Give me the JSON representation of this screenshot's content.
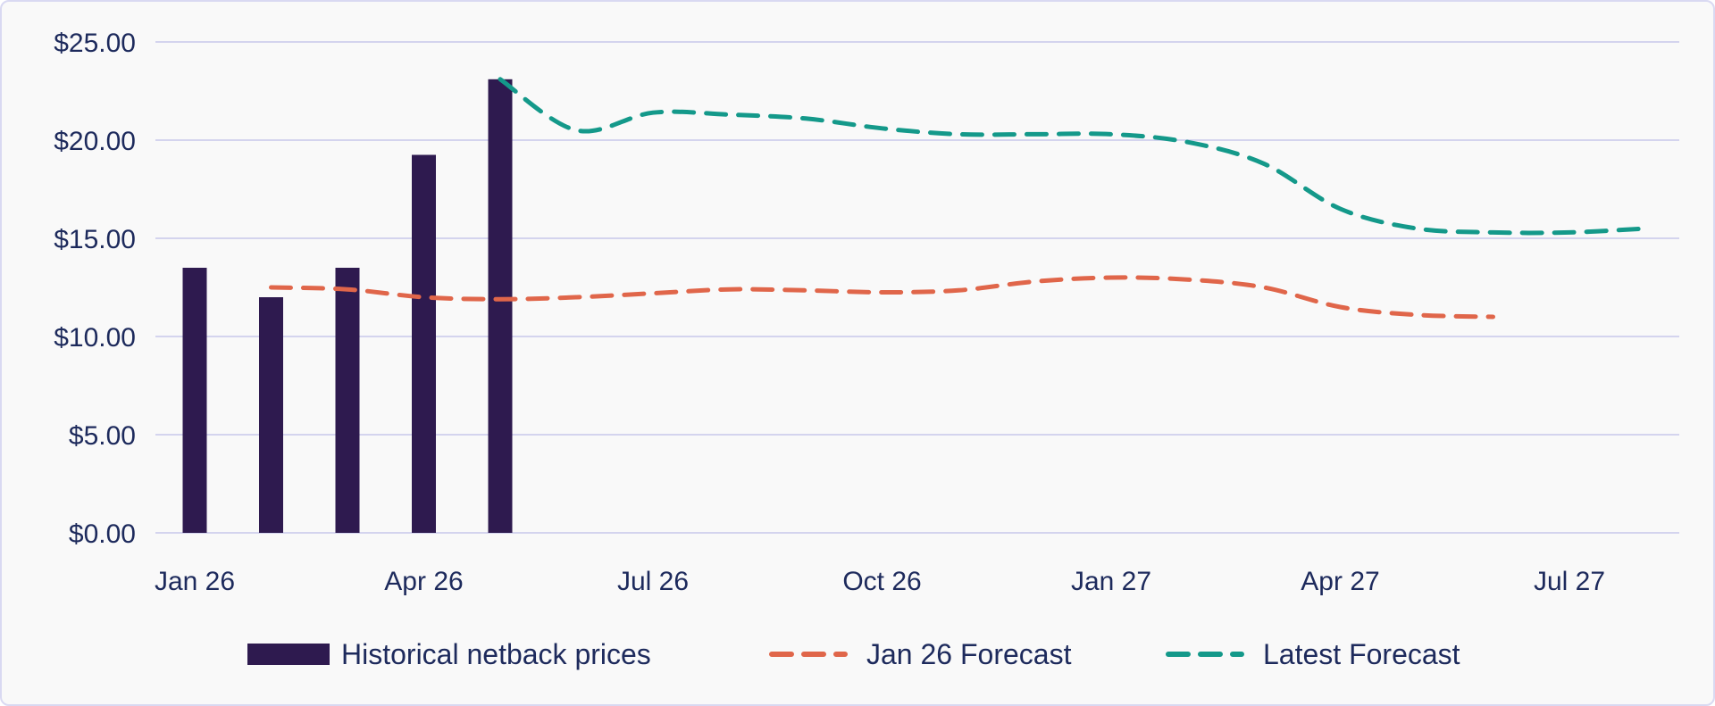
{
  "chart_data": {
    "type": "bar",
    "title": "",
    "xlabel": "",
    "ylabel": "",
    "ylim": [
      0,
      25
    ],
    "y_ticks": [
      "$0.00",
      "$5.00",
      "$10.00",
      "$15.00",
      "$20.00",
      "$25.00"
    ],
    "y_tick_values": [
      0,
      5,
      10,
      15,
      20,
      25
    ],
    "x_ticks": [
      "Jan 26",
      "Apr 26",
      "Jul 26",
      "Oct 26",
      "Jan 27",
      "Apr 27",
      "Jul 27"
    ],
    "x_tick_months": [
      "2026-01",
      "2026-04",
      "2026-07",
      "2026-10",
      "2027-01",
      "2027-04",
      "2027-07"
    ],
    "grid": true,
    "legend_position": "bottom",
    "colors": {
      "bars": "#2e1a4f",
      "jan26_forecast": "#e0664a",
      "latest_forecast": "#14998a",
      "grid": "#d4d4ee",
      "text": "#1d2a5c"
    },
    "series": [
      {
        "name": "Historical netback prices",
        "kind": "bar",
        "x": [
          "2026-01",
          "2026-02",
          "2026-03",
          "2026-04",
          "2026-05"
        ],
        "values": [
          13.5,
          12.0,
          13.5,
          19.25,
          23.1
        ]
      },
      {
        "name": "Jan 26 Forecast",
        "kind": "dashed-line",
        "x": [
          "2026-02",
          "2026-03",
          "2026-04",
          "2026-05",
          "2026-06",
          "2026-07",
          "2026-08",
          "2026-09",
          "2026-10",
          "2026-11",
          "2026-12",
          "2027-01",
          "2027-02",
          "2027-03",
          "2027-04",
          "2027-05",
          "2027-06"
        ],
        "values": [
          12.5,
          12.4,
          12.0,
          11.9,
          12.0,
          12.2,
          12.4,
          12.35,
          12.25,
          12.35,
          12.8,
          13.0,
          12.9,
          12.5,
          11.5,
          11.1,
          11.0
        ]
      },
      {
        "name": "Latest Forecast",
        "kind": "dashed-line",
        "x": [
          "2026-05",
          "2026-06",
          "2026-07",
          "2026-08",
          "2026-09",
          "2026-10",
          "2026-11",
          "2026-12",
          "2027-01",
          "2027-02",
          "2027-03",
          "2027-04",
          "2027-05",
          "2027-06",
          "2027-07",
          "2027-08"
        ],
        "values": [
          23.1,
          20.5,
          21.4,
          21.3,
          21.1,
          20.6,
          20.3,
          20.3,
          20.3,
          19.9,
          18.8,
          16.5,
          15.5,
          15.3,
          15.3,
          15.5
        ]
      }
    ]
  }
}
